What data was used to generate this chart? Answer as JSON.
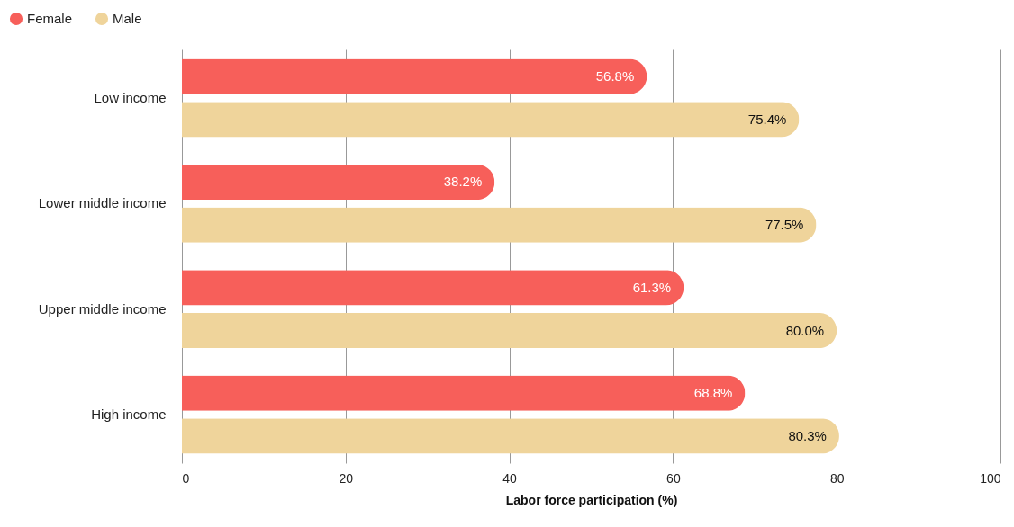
{
  "chart_data": {
    "type": "bar",
    "orientation": "horizontal",
    "xlabel": "Labor force participation (%)",
    "categories": [
      "Low income",
      "Lower middle income",
      "Upper middle income",
      "High income"
    ],
    "series": [
      {
        "name": "Female",
        "color": "#f75f5a",
        "values": [
          56.8,
          38.2,
          61.3,
          68.8
        ],
        "value_labels": [
          "56.8%",
          "38.2%",
          "61.3%",
          "68.8%"
        ]
      },
      {
        "name": "Male",
        "color": "#efd49b",
        "values": [
          75.4,
          77.5,
          80.0,
          80.3
        ],
        "value_labels": [
          "75.4%",
          "77.5%",
          "80.0%",
          "80.3%"
        ]
      }
    ],
    "xlim": [
      0,
      100
    ],
    "xticks": [
      0,
      20,
      40,
      60,
      80,
      100
    ],
    "grid": "x",
    "legend": "top left"
  }
}
